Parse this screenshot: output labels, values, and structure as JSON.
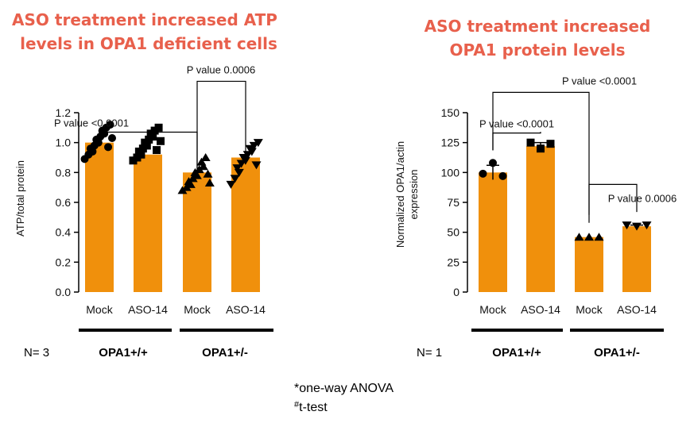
{
  "colors": {
    "bar": "#f0900c",
    "marker": "#000000",
    "title": "#e8604c"
  },
  "chart_data": [
    {
      "type": "bar",
      "title": [
        "ASO treatment increased ATP",
        "levels in OPA1 deficient cells"
      ],
      "ylabel": "ATP/total protein",
      "xlabel": "",
      "ylim": [
        0,
        1.2
      ],
      "yticks": [
        "0.0",
        "0.2",
        "0.4",
        "0.6",
        "0.8",
        "1.0",
        "1.2"
      ],
      "categories": [
        "Mock",
        "ASO-14",
        "Mock",
        "ASO-14"
      ],
      "values": [
        1.0,
        0.92,
        0.8,
        0.9
      ],
      "points": [
        [
          0.89,
          0.92,
          0.94,
          0.96,
          0.98,
          1.0,
          1.02,
          1.04,
          1.06,
          1.08,
          1.1,
          1.12,
          0.97,
          1.03
        ],
        [
          0.88,
          0.9,
          0.92,
          0.94,
          0.96,
          0.98,
          1.0,
          1.02,
          1.04,
          1.06,
          1.08,
          1.1,
          0.95,
          1.01
        ],
        [
          0.68,
          0.7,
          0.72,
          0.74,
          0.76,
          0.78,
          0.8,
          0.82,
          0.84,
          0.87,
          0.9,
          0.73,
          0.79
        ],
        [
          0.72,
          0.76,
          0.8,
          0.83,
          0.86,
          0.88,
          0.9,
          0.92,
          0.94,
          0.96,
          0.98,
          1.0,
          0.85
        ]
      ],
      "markers": [
        "circle",
        "square",
        "triangle-up",
        "triangle-down"
      ],
      "groups": [
        "OPA1+/+",
        "OPA1+/-"
      ],
      "n_label": "N= 3",
      "comparisons": [
        {
          "from": 0,
          "to": 2,
          "level": 1.07,
          "label": "P value <0.0001"
        },
        {
          "from": 2,
          "to": 3,
          "level": 1.41,
          "label": "P value 0.0006"
        }
      ]
    },
    {
      "type": "bar",
      "title": [
        "ASO treatment increased",
        "OPA1 protein levels"
      ],
      "ylabel": [
        "Normalized OPA1/actin",
        "expression"
      ],
      "xlabel": "",
      "ylim": [
        0,
        150
      ],
      "yticks": [
        "0",
        "25",
        "50",
        "75",
        "100",
        "125",
        "150"
      ],
      "categories": [
        "Mock",
        "ASO-14",
        "Mock",
        "ASO-14"
      ],
      "values": [
        100,
        122,
        46,
        55
      ],
      "errors": [
        6,
        3,
        0,
        1
      ],
      "points": [
        [
          99,
          108,
          97
        ],
        [
          125,
          120,
          124
        ],
        [
          46,
          46,
          46
        ],
        [
          56,
          55,
          56
        ]
      ],
      "markers": [
        "circle",
        "square",
        "triangle-up",
        "triangle-down"
      ],
      "groups": [
        "OPA1+/+",
        "OPA1+/-"
      ],
      "n_label": "N= 1",
      "comparisons": [
        {
          "from": 0,
          "to": 1,
          "level": 133,
          "label": "P value <0.0001"
        },
        {
          "from": 0,
          "to": 2,
          "level": 167,
          "label": "P value <0.0001"
        },
        {
          "from": 2,
          "to": 3,
          "level": 90,
          "label": "P value 0.0006"
        }
      ]
    }
  ],
  "footnotes": [
    {
      "prefix": "*",
      "text": "one-way ANOVA"
    },
    {
      "prefix": "#",
      "text": "t-test"
    }
  ]
}
